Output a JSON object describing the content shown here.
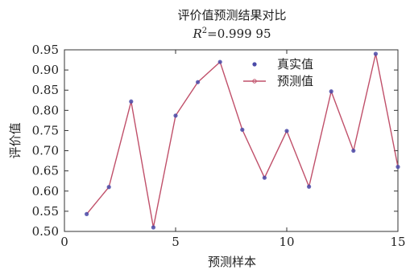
{
  "chart_data": {
    "type": "line",
    "title": "评价值预测结果对比",
    "subtitle_prefix": "R",
    "subtitle_sup": "2",
    "subtitle_value": "=0.999 95",
    "xlabel": "预测样本",
    "ylabel": "评价值",
    "xlim": [
      0,
      15
    ],
    "ylim": [
      0.5,
      0.95
    ],
    "x_ticks": [
      0,
      5,
      10,
      15
    ],
    "x_tick_labels": [
      "0",
      "5",
      "10",
      "15"
    ],
    "y_ticks": [
      0.5,
      0.55,
      0.6,
      0.65,
      0.7,
      0.75,
      0.8,
      0.85,
      0.9,
      0.95
    ],
    "y_tick_labels": [
      "0.50",
      "0.55",
      "0.60",
      "0.65",
      "0.70",
      "0.75",
      "0.80",
      "0.85",
      "0.90",
      "0.95"
    ],
    "grid": false,
    "legend_position": "top-right",
    "x": [
      1,
      2,
      3,
      4,
      5,
      6,
      7,
      8,
      9,
      10,
      11,
      12,
      13,
      14,
      15
    ],
    "series": [
      {
        "name": "真实值",
        "style": "markers",
        "color": "#4a4aa8",
        "values": [
          0.543,
          0.61,
          0.822,
          0.51,
          0.787,
          0.87,
          0.92,
          0.752,
          0.633,
          0.749,
          0.611,
          0.847,
          0.7,
          0.94,
          0.66
        ]
      },
      {
        "name": "预测值",
        "style": "line",
        "color": "#c0506a",
        "values": [
          0.543,
          0.61,
          0.822,
          0.51,
          0.787,
          0.87,
          0.92,
          0.752,
          0.633,
          0.749,
          0.611,
          0.847,
          0.7,
          0.94,
          0.66
        ]
      }
    ]
  }
}
